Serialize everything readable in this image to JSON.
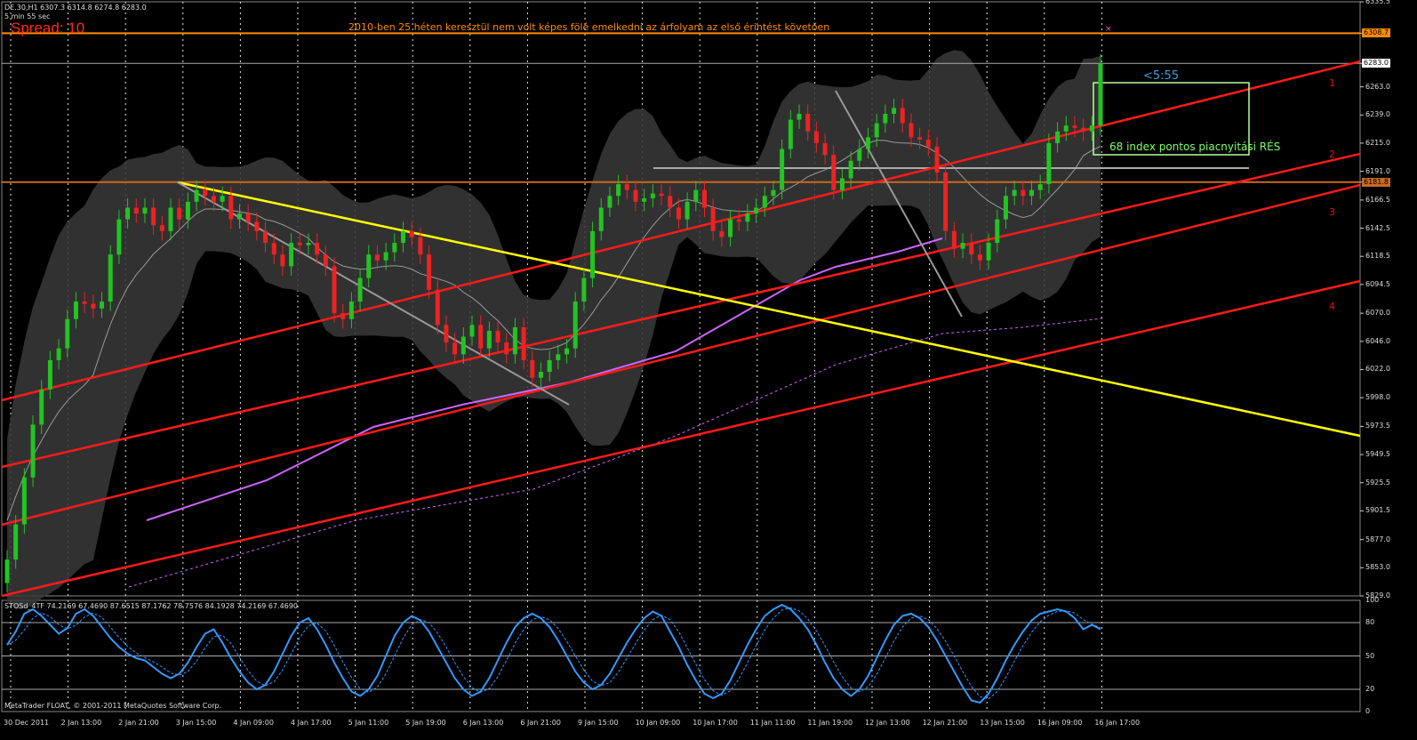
{
  "header": {
    "symbol_line": "DE.30,H1  6307.3 6314.8 6274.8 6283.0",
    "bar_timer": "5 min 55 sec",
    "spread": "Spread: 10"
  },
  "annotation": "2010-ben 25 héten keresztül nem volt képes fölé emelkedni az  árfolyam az első érintést követően",
  "countdown": "<5:55",
  "gap_note": "68 index pontos piacnyitási RÉS",
  "channel_labels": [
    "1",
    "2",
    "3",
    "4"
  ],
  "price_axis": [
    "6335.5",
    "6308.7",
    "6283.0",
    "6263.0",
    "6239.0",
    "6215.0",
    "6191.0",
    "6181.8",
    "6166.5",
    "6142.5",
    "6118.5",
    "6094.5",
    "6070.0",
    "6046.0",
    "6022.0",
    "5998.0",
    "5973.5",
    "5949.5",
    "5925.5",
    "5901.5",
    "5877.0",
    "5853.0",
    "5829.0"
  ],
  "price_markers": [
    {
      "value": "6308.7",
      "color": "#ff8c00"
    },
    {
      "value": "6283.0",
      "color": "#ffffff"
    },
    {
      "value": "6181.8",
      "color": "#c86a1e"
    }
  ],
  "time_axis": [
    "30 Dec 2011",
    "2 Jan 13:00",
    "2 Jan 21:00",
    "3 Jan 15:00",
    "4 Jan 09:00",
    "4 Jan 17:00",
    "5 Jan 11:00",
    "5 Jan 19:00",
    "6 Jan 13:00",
    "6 Jan 21:00",
    "9 Jan 15:00",
    "10 Jan 09:00",
    "10 Jan 17:00",
    "11 Jan 11:00",
    "11 Jan 19:00",
    "12 Jan 13:00",
    "12 Jan 21:00",
    "13 Jan 15:00",
    "16 Jan 09:00",
    "16 Jan 17:00"
  ],
  "indicator": {
    "label": "STOSd_4TF 74.2169 67.4690 87.6515 87.1762 78.7576 84.1928 74.2169 67.4690",
    "axis": [
      "100",
      "80",
      "50",
      "20",
      "0"
    ]
  },
  "footer": "MetaTrader FLOAT, © 2001-2011 MetaQuotes Software Corp.",
  "colors": {
    "background": "#000000",
    "bull": "#22c422",
    "bear": "#ee2222",
    "channel": "#ff1a1a",
    "trendline": "#ffff00",
    "resistance": "#ff8c00",
    "support": "#c86a1e",
    "ma": "#cc66ff",
    "stoch": "#3399ff"
  },
  "chart_data": {
    "type": "candlestick",
    "symbol": "DE.30",
    "timeframe": "H1",
    "last_ohlc": {
      "open": 6307.3,
      "high": 6314.8,
      "low": 6274.8,
      "close": 6283.0
    },
    "ylim": [
      5829.0,
      6335.5
    ],
    "levels": [
      6308.7,
      6283.0,
      6181.8
    ],
    "close": [
      5860,
      5890,
      5930,
      5975,
      6005,
      6030,
      6040,
      6065,
      6080,
      6078,
      6074,
      6080,
      6120,
      6150,
      6160,
      6155,
      6160,
      6145,
      6140,
      6160,
      6150,
      6165,
      6175,
      6170,
      6165,
      6170,
      6150,
      6155,
      6148,
      6140,
      6130,
      6120,
      6110,
      6130,
      6128,
      6130,
      6120,
      6110,
      6070,
      6065,
      6080,
      6100,
      6120,
      6115,
      6122,
      6130,
      6140,
      6135,
      6120,
      6090,
      6060,
      6045,
      6035,
      6050,
      6060,
      6040,
      6055,
      6045,
      6035,
      6058,
      6030,
      6015,
      6020,
      6030,
      6035,
      6040,
      6080,
      6100,
      6140,
      6160,
      6170,
      6180,
      6175,
      6165,
      6168,
      6172,
      6170,
      6160,
      6150,
      6165,
      6175,
      6160,
      6140,
      6135,
      6150,
      6148,
      6155,
      6160,
      6170,
      6175,
      6210,
      6235,
      6240,
      6225,
      6215,
      6205,
      6175,
      6185,
      6200,
      6210,
      6220,
      6232,
      6240,
      6245,
      6232,
      6220,
      6218,
      6212,
      6190,
      6140,
      6125,
      6130,
      6120,
      6115,
      6130,
      6150,
      6170,
      6175,
      6170,
      6175,
      6180,
      6215,
      6225,
      6230,
      6228,
      6225,
      6230,
      6283
    ],
    "stochastic": [
      60,
      72,
      88,
      92,
      86,
      78,
      70,
      75,
      88,
      92,
      86,
      76,
      66,
      58,
      52,
      48,
      46,
      40,
      34,
      30,
      34,
      44,
      58,
      70,
      74,
      62,
      48,
      36,
      26,
      20,
      24,
      36,
      52,
      68,
      80,
      84,
      74,
      60,
      44,
      30,
      18,
      14,
      20,
      32,
      50,
      68,
      80,
      86,
      82,
      72,
      58,
      44,
      30,
      20,
      14,
      18,
      30,
      46,
      62,
      76,
      84,
      88,
      84,
      76,
      64,
      50,
      36,
      26,
      20,
      24,
      34,
      48,
      62,
      74,
      84,
      90,
      86,
      72,
      58,
      42,
      28,
      16,
      12,
      16,
      28,
      44,
      60,
      74,
      86,
      92,
      96,
      92,
      84,
      74,
      60,
      44,
      30,
      20,
      14,
      20,
      32,
      48,
      64,
      78,
      86,
      88,
      84,
      76,
      64,
      50,
      36,
      22,
      10,
      8,
      16,
      30,
      46,
      60,
      72,
      82,
      88,
      90,
      92,
      90,
      84,
      74,
      78,
      74
    ]
  }
}
